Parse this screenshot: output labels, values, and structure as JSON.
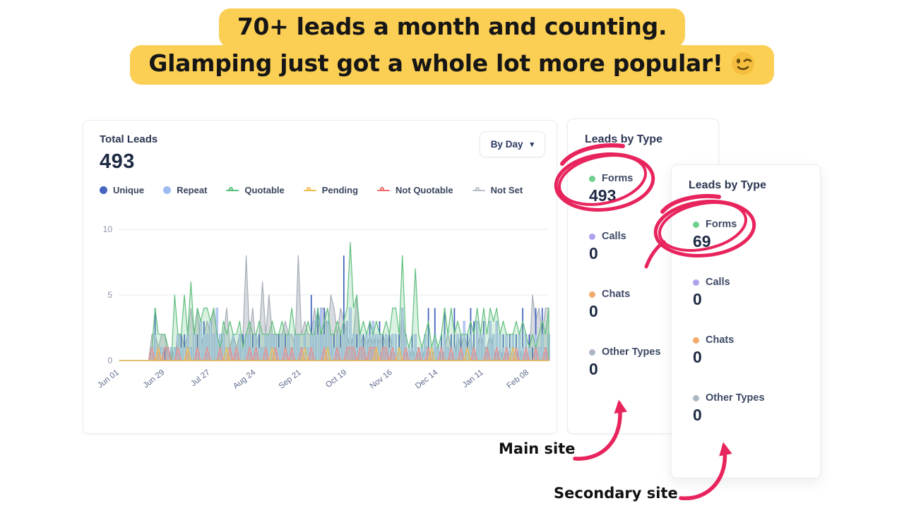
{
  "headline": {
    "line1": "70+ leads a month and counting.",
    "line2": "Glamping just got a whole lot more popular!",
    "emoji": "😉",
    "highlight_color": "#FBCE54",
    "text_color": "#161616"
  },
  "total_leads": {
    "title": "Total Leads",
    "value": "493",
    "period_selector": {
      "label": "By Day",
      "caret": "▾"
    },
    "legend": [
      {
        "label": "Unique",
        "color": "#4565C0",
        "marker": "dot"
      },
      {
        "label": "Repeat",
        "color": "#9DBBF0",
        "marker": "dot"
      },
      {
        "label": "Quotable",
        "color": "#57BE79",
        "marker": "line"
      },
      {
        "label": "Pending",
        "color": "#F0BE4E",
        "marker": "line"
      },
      {
        "label": "Not Quotable",
        "color": "#F06A6A",
        "marker": "line"
      },
      {
        "label": "Not Set",
        "color": "#B9BFC9",
        "marker": "line"
      }
    ]
  },
  "chart_data": {
    "type": "mixed-bar-line",
    "x_tick_labels": [
      "Jun 01",
      "Jun 29",
      "Jul 27",
      "Aug 24",
      "Sep 21",
      "Oct 19",
      "Nov 16",
      "Dec 14",
      "Jan 11",
      "Feb 08"
    ],
    "tick_interval_samples": 14,
    "sample_interval_days": 2,
    "ylim": [
      0,
      10
    ],
    "y_ticks": [
      0,
      5,
      10
    ],
    "grid": true,
    "legend_position": "top",
    "series": [
      {
        "name": "Not Set",
        "render": "area",
        "color": "#A7AEB9",
        "fill": "rgba(167,174,185,0.45)",
        "values": [
          0,
          0,
          0,
          0,
          0,
          0,
          0,
          0,
          0,
          0,
          2,
          2,
          1,
          2,
          2,
          0,
          1,
          0,
          2,
          2,
          1,
          2,
          4,
          2,
          4,
          1,
          2,
          3,
          2,
          4,
          2,
          1,
          2,
          4,
          1,
          2,
          1,
          2,
          2,
          8,
          2,
          4,
          1,
          2,
          6,
          2,
          5,
          2,
          2,
          2,
          2,
          3,
          2,
          2,
          1,
          8,
          2,
          3,
          2,
          2,
          4,
          2,
          4,
          4,
          2,
          5,
          4,
          2,
          4,
          3,
          2,
          1,
          2,
          5,
          1,
          2,
          1,
          2,
          1,
          2,
          1,
          2,
          1,
          2,
          1,
          0,
          1,
          4,
          1,
          0,
          1,
          0,
          1,
          0,
          1,
          1,
          0,
          1,
          1,
          0,
          1,
          2,
          1,
          0,
          2,
          1,
          2,
          1,
          2,
          0,
          1,
          2,
          1,
          1,
          2,
          1,
          0,
          1,
          0,
          1,
          0,
          1,
          0,
          1,
          0,
          1,
          0,
          5,
          3,
          4,
          2,
          4,
          4
        ]
      },
      {
        "name": "Unique",
        "render": "bar",
        "color": "#4565C0",
        "values": [
          0,
          0,
          0,
          0,
          0,
          0,
          0,
          0,
          0,
          0,
          0,
          4,
          1,
          0,
          1,
          0,
          1,
          1,
          0,
          2,
          2,
          1,
          0,
          1,
          2,
          1,
          3,
          1,
          2,
          1,
          1,
          2,
          1,
          0,
          1,
          2,
          1,
          1,
          2,
          1,
          1,
          2,
          1,
          2,
          1,
          1,
          2,
          1,
          2,
          2,
          1,
          2,
          1,
          1,
          2,
          1,
          1,
          2,
          1,
          5,
          2,
          4,
          2,
          4,
          2,
          1,
          2,
          1,
          2,
          8,
          2,
          4,
          1,
          2,
          1,
          2,
          1,
          3,
          3,
          2,
          3,
          2,
          1,
          2,
          1,
          1,
          2,
          4,
          1,
          1,
          2,
          1,
          1,
          1,
          2,
          4,
          1,
          4,
          1,
          2,
          4,
          1,
          2,
          4,
          1,
          2,
          1,
          2,
          4,
          3,
          3,
          1,
          3,
          1,
          2,
          1,
          2,
          1,
          2,
          1,
          2,
          1,
          2,
          1,
          4,
          1,
          2,
          1,
          4,
          1,
          4,
          1,
          2
        ]
      },
      {
        "name": "Repeat",
        "render": "bar",
        "color": "#C3D4F7",
        "stroke": "#7E9ADF",
        "values": [
          0,
          0,
          0,
          0,
          0,
          0,
          0,
          0,
          0,
          0,
          1,
          2,
          1,
          1,
          0,
          1,
          1,
          1,
          2,
          1,
          1,
          2,
          1,
          2,
          1,
          3,
          2,
          2,
          3,
          2,
          4,
          2,
          2,
          1,
          1,
          2,
          1,
          2,
          1,
          2,
          2,
          1,
          2,
          1,
          1,
          2,
          2,
          2,
          2,
          1,
          2,
          1,
          2,
          1,
          2,
          2,
          1,
          2,
          1,
          2,
          3,
          2,
          4,
          2,
          3,
          2,
          1,
          2,
          1,
          2,
          3,
          4,
          2,
          1,
          2,
          1,
          2,
          2,
          3,
          2,
          2,
          1,
          2,
          1,
          2,
          2,
          1,
          4,
          2,
          1,
          1,
          2,
          1,
          1,
          2,
          1,
          1,
          2,
          1,
          1,
          2,
          1,
          1,
          1,
          2,
          1,
          3,
          1,
          2,
          1,
          3,
          2,
          2,
          1,
          3,
          2,
          3,
          2,
          1,
          2,
          1,
          2,
          1,
          2,
          1,
          2,
          1,
          0,
          2,
          1,
          2,
          1,
          2
        ]
      },
      {
        "name": "Quotable",
        "render": "area",
        "color": "#5FBF7E",
        "fill": "rgba(111,199,140,0.25)",
        "values": [
          0,
          0,
          0,
          0,
          0,
          0,
          0,
          0,
          0,
          0,
          1,
          4,
          2,
          2,
          2,
          1,
          0,
          5,
          2,
          2,
          5,
          2,
          6,
          2,
          4,
          3,
          4,
          4,
          3,
          4,
          2,
          1,
          3,
          2,
          3,
          2,
          2,
          3,
          1,
          2,
          3,
          2,
          2,
          3,
          2,
          2,
          2,
          3,
          2,
          2,
          3,
          2,
          2,
          4,
          2,
          2,
          2,
          2,
          3,
          2,
          2,
          4,
          2,
          3,
          4,
          2,
          2,
          3,
          2,
          3,
          4,
          9,
          4,
          5,
          2,
          3,
          2,
          3,
          2,
          3,
          2,
          2,
          3,
          2,
          4,
          4,
          2,
          8,
          2,
          1,
          2,
          7,
          2,
          1,
          2,
          3,
          1,
          2,
          1,
          2,
          4,
          2,
          4,
          2,
          3,
          2,
          2,
          2,
          3,
          2,
          4,
          2,
          4,
          2,
          4,
          3,
          4,
          2,
          3,
          2,
          2,
          2,
          3,
          2,
          3,
          2,
          1,
          2,
          1,
          2,
          3,
          2,
          4
        ]
      },
      {
        "name": "Not Quotable",
        "render": "area",
        "color": "#EF8C8C",
        "fill": "rgba(240,127,127,0.30)",
        "values": [
          0,
          0,
          0,
          0,
          0,
          0,
          0,
          0,
          0,
          0,
          1,
          0,
          1,
          0,
          1,
          1,
          0,
          0,
          1,
          0,
          0,
          1,
          0,
          0,
          1,
          0,
          0,
          1,
          0,
          0,
          0,
          1,
          0,
          0,
          1,
          0,
          1,
          0,
          0,
          0,
          1,
          0,
          1,
          0,
          0,
          1,
          0,
          0,
          1,
          0,
          0,
          1,
          0,
          1,
          0,
          0,
          1,
          0,
          0,
          1,
          0,
          0,
          0,
          1,
          0,
          0,
          0,
          1,
          0,
          0,
          1,
          1,
          1,
          0,
          1,
          1,
          0,
          1,
          1,
          1,
          0,
          1,
          1,
          0,
          1,
          0,
          0,
          0,
          1,
          0,
          0,
          0,
          1,
          0,
          0,
          1,
          0,
          0,
          0,
          1,
          0,
          0,
          1,
          0,
          0,
          1,
          0,
          0,
          0,
          1,
          0,
          0,
          0,
          1,
          0,
          0,
          1,
          0,
          0,
          1,
          0,
          0,
          1,
          0,
          0,
          1,
          0,
          0,
          1,
          0,
          0,
          1,
          0
        ]
      },
      {
        "name": "Pending",
        "render": "area",
        "color": "#F0BE4E",
        "fill": "rgba(242,195,85,0.30)",
        "values": [
          0,
          0,
          0,
          0,
          0,
          0,
          0,
          0,
          0,
          0,
          0,
          0,
          1,
          0,
          0,
          0,
          0,
          0,
          0,
          0,
          0,
          1,
          0,
          0,
          0,
          0,
          0,
          0,
          0,
          0,
          0,
          0,
          0,
          1,
          0,
          0,
          0,
          0,
          0,
          0,
          0,
          0,
          0,
          0,
          0,
          0,
          0,
          1,
          0,
          0,
          0,
          0,
          0,
          0,
          0,
          0,
          0,
          1,
          0,
          0,
          0,
          0,
          0,
          0,
          1,
          0,
          0,
          0,
          0,
          0,
          0,
          0,
          0,
          0,
          0,
          0,
          0,
          0,
          0,
          1,
          0,
          0,
          0,
          0,
          0,
          0,
          1,
          0,
          0,
          0,
          0,
          0,
          0,
          0,
          0,
          0,
          1,
          0,
          0,
          0,
          0,
          0,
          0,
          0,
          0,
          0,
          0,
          1,
          0,
          0,
          0,
          0,
          0,
          0,
          0,
          0,
          0,
          0,
          0,
          0,
          0,
          1,
          0,
          0,
          0,
          0,
          0,
          0,
          0,
          0,
          0,
          0,
          0
        ]
      }
    ]
  },
  "leads_main": {
    "title": "Leads by Type",
    "items": [
      {
        "label": "Forms",
        "value": "493",
        "color": "#6FCF8F"
      },
      {
        "label": "Calls",
        "value": "0",
        "color": "#AFA3EE"
      },
      {
        "label": "Chats",
        "value": "0",
        "color": "#F2A96A"
      },
      {
        "label": "Other Types",
        "value": "0",
        "color": "#AEB6C2"
      }
    ]
  },
  "leads_secondary": {
    "title": "Leads by Type",
    "items": [
      {
        "label": "Forms",
        "value": "69",
        "color": "#6FCF8F"
      },
      {
        "label": "Calls",
        "value": "0",
        "color": "#AFA3EE"
      },
      {
        "label": "Chats",
        "value": "0",
        "color": "#F2A96A"
      },
      {
        "label": "Other Types",
        "value": "0",
        "color": "#AEB6C2"
      }
    ]
  },
  "annotations": {
    "main_site_label": "Main site",
    "secondary_site_label": "Secondary site",
    "ink_color": "#E8245D"
  }
}
